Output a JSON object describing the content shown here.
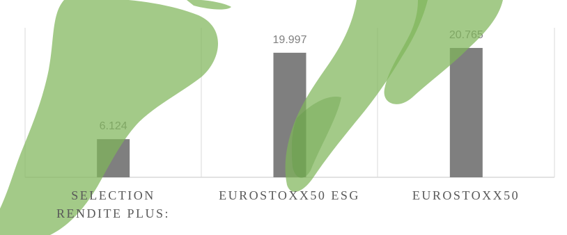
{
  "chart_data": {
    "type": "bar",
    "categories": [
      "SELECTION RENDITE PLUS:",
      "EUROSTOXX50 ESG",
      "EUROSTOXX50"
    ],
    "values": [
      6.124,
      19.997,
      20.765
    ],
    "value_labels": [
      "6.124",
      "19.997",
      "20.765"
    ],
    "title": "",
    "xlabel": "",
    "ylabel": "",
    "ylim": [
      0,
      24
    ],
    "grid": false,
    "bar_color": "#7f7f7f",
    "label_color": "#7f7f7f"
  },
  "category_lines": [
    [
      "SELECTION",
      "RENDITE PLUS:"
    ],
    [
      "EUROSTOXX50 ESG"
    ],
    [
      "EUROSTOXX50"
    ]
  ],
  "decoration": {
    "footprint_color": "#7fb55a"
  }
}
